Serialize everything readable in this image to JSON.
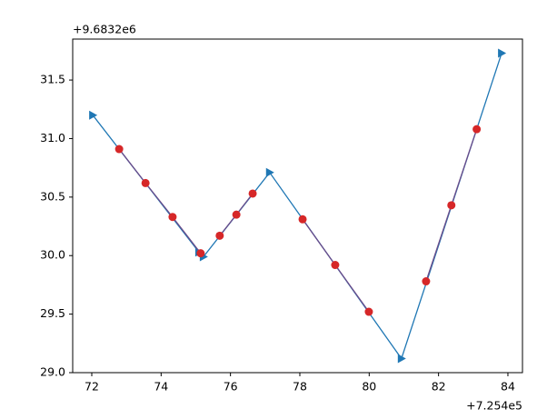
{
  "chart_data": {
    "type": "line",
    "x_offset_label": "+7.254e5",
    "y_offset_label": "+9.6832e6",
    "xlim": [
      71.45,
      84.42
    ],
    "xticks": [
      72,
      74,
      76,
      78,
      80,
      82,
      84
    ],
    "ylim": [
      29.0,
      31.85
    ],
    "yticks": [
      {
        "value": 29,
        "label": "29.0"
      },
      29.5,
      {
        "value": 30,
        "label": "30.0"
      },
      30.5,
      {
        "value": 31,
        "label": "31.0"
      },
      31.5
    ],
    "series": [
      {
        "color": "#1f77b4",
        "marker": "triangle-right",
        "x": [
          72.03,
          75.09,
          75.22,
          77.13,
          80.93,
          83.82
        ],
        "values": [
          31.2,
          30.03,
          29.99,
          30.71,
          29.12,
          31.73
        ]
      },
      {
        "color": "#d62728",
        "line_color": "#6b4c8a",
        "marker": "circle",
        "x": [
          72.79,
          73.55,
          74.33,
          75.14,
          null,
          75.69,
          76.17,
          76.64,
          null,
          78.08,
          79.02,
          79.99,
          null,
          81.64,
          82.37,
          83.1
        ],
        "values": [
          30.91,
          30.62,
          30.33,
          30.02,
          null,
          30.17,
          30.35,
          30.53,
          null,
          30.31,
          29.92,
          29.52,
          null,
          29.78,
          30.43,
          31.08
        ]
      }
    ]
  }
}
